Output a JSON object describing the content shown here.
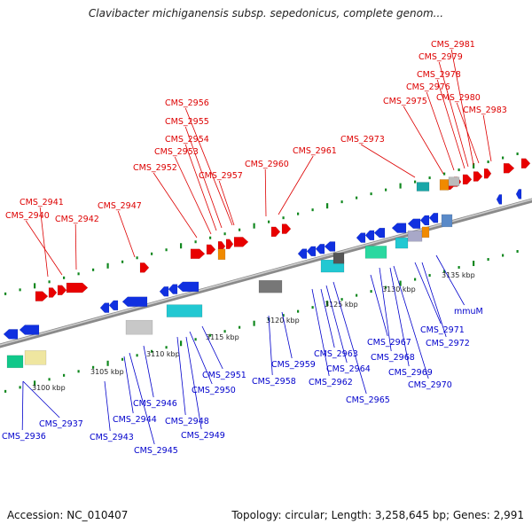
{
  "title": "Clavibacter michiganensis subsp. sepedonicus, complete genom...",
  "footer": {
    "accession": "Accession: NC_010407",
    "topology": "Topology: circular; Length: 3,258,645 bp; Genes: 2,991"
  },
  "colors": {
    "forward_label": "#dd0000",
    "reverse_label": "#0000cc",
    "backbone": "#888888",
    "tick": "#11881f"
  },
  "scale": {
    "unit": "kbp",
    "ticks": [
      3100,
      3105,
      3110,
      3115,
      3120,
      3125,
      3130,
      3135
    ]
  },
  "forward_labels": [
    {
      "text": "CMS_2940"
    },
    {
      "text": "CMS_2941"
    },
    {
      "text": "CMS_2942"
    },
    {
      "text": "CMS_2947"
    },
    {
      "text": "CMS_2952"
    },
    {
      "text": "CMS_2953"
    },
    {
      "text": "CMS_2954"
    },
    {
      "text": "CMS_2955"
    },
    {
      "text": "CMS_2956"
    },
    {
      "text": "CMS_2957"
    },
    {
      "text": "CMS_2960"
    },
    {
      "text": "CMS_2961"
    },
    {
      "text": "CMS_2973"
    },
    {
      "text": "CMS_2975"
    },
    {
      "text": "CMS_2976"
    },
    {
      "text": "CMS_2978"
    },
    {
      "text": "CMS_2979"
    },
    {
      "text": "CMS_2980"
    },
    {
      "text": "CMS_2981"
    },
    {
      "text": "CMS_2983"
    }
  ],
  "reverse_labels": [
    {
      "text": "CMS_2936"
    },
    {
      "text": "CMS_2937"
    },
    {
      "text": "CMS_2943"
    },
    {
      "text": "CMS_2944"
    },
    {
      "text": "CMS_2945"
    },
    {
      "text": "CMS_2946"
    },
    {
      "text": "CMS_2948"
    },
    {
      "text": "CMS_2949"
    },
    {
      "text": "CMS_2950"
    },
    {
      "text": "CMS_2951"
    },
    {
      "text": "CMS_2958"
    },
    {
      "text": "CMS_2959"
    },
    {
      "text": "CMS_2962"
    },
    {
      "text": "CMS_2963"
    },
    {
      "text": "CMS_2964"
    },
    {
      "text": "CMS_2965"
    },
    {
      "text": "CMS_2967"
    },
    {
      "text": "CMS_2968"
    },
    {
      "text": "CMS_2969"
    },
    {
      "text": "CMS_2970"
    },
    {
      "text": "CMS_2971"
    },
    {
      "text": "CMS_2972"
    },
    {
      "text": "mmuM"
    }
  ]
}
